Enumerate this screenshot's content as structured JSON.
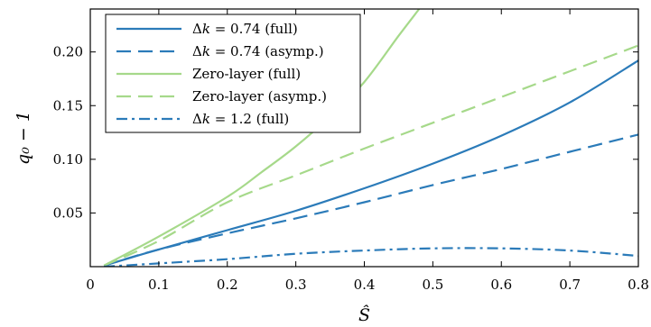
{
  "chart_data": {
    "type": "line",
    "xlabel": "Ŝ",
    "ylabel": "q₀ − 1",
    "xlim": [
      0,
      0.8
    ],
    "ylim": [
      0,
      0.24
    ],
    "xticks": [
      0,
      0.1,
      0.2,
      0.3,
      0.4,
      0.5,
      0.6,
      0.7,
      0.8
    ],
    "xtick_labels": [
      "0",
      "0.1",
      "0.2",
      "0.3",
      "0.4",
      "0.5",
      "0.6",
      "0.7",
      "0.8"
    ],
    "yticks": [
      0.05,
      0.1,
      0.15,
      0.2
    ],
    "ytick_labels": [
      "0.05",
      "0.10",
      "0.15",
      "0.20"
    ],
    "grid": false,
    "legend_position": "top-left",
    "series": [
      {
        "name_prefix": "Δ",
        "name_var": "k",
        "name_suffix": " = 0.74 (full)",
        "color": "#2b7bb9",
        "dash": "solid",
        "x": [
          0.02,
          0.1,
          0.2,
          0.3,
          0.4,
          0.5,
          0.6,
          0.7,
          0.8
        ],
        "y": [
          0.001,
          0.016,
          0.034,
          0.052,
          0.073,
          0.096,
          0.122,
          0.153,
          0.192
        ]
      },
      {
        "name_prefix": "Δ",
        "name_var": "k",
        "name_suffix": " = 0.74 (asymp.)",
        "color": "#2b7bb9",
        "dash": "dashed",
        "x": [
          0.02,
          0.1,
          0.2,
          0.3,
          0.4,
          0.5,
          0.6,
          0.7,
          0.8
        ],
        "y": [
          0.001,
          0.016,
          0.031,
          0.045,
          0.06,
          0.076,
          0.091,
          0.107,
          0.123
        ]
      },
      {
        "name": "Zero-layer (full)",
        "color": "#a6d98a",
        "dash": "solid",
        "x": [
          0.02,
          0.1,
          0.2,
          0.25,
          0.3,
          0.35,
          0.4,
          0.45,
          0.48
        ],
        "y": [
          0.001,
          0.028,
          0.065,
          0.088,
          0.112,
          0.14,
          0.172,
          0.215,
          0.24
        ]
      },
      {
        "name": "Zero-layer (asymp.)",
        "color": "#a6d98a",
        "dash": "dashed",
        "x": [
          0.02,
          0.1,
          0.2,
          0.3,
          0.4,
          0.5,
          0.6,
          0.7,
          0.8
        ],
        "y": [
          0.001,
          0.024,
          0.06,
          0.085,
          0.11,
          0.134,
          0.158,
          0.182,
          0.206
        ]
      },
      {
        "name_prefix": "Δ",
        "name_var": "k",
        "name_suffix": " = 1.2 (full)",
        "color": "#2b7bb9",
        "dash": "dashdot",
        "x": [
          0.02,
          0.1,
          0.2,
          0.3,
          0.4,
          0.5,
          0.6,
          0.7,
          0.8
        ],
        "y": [
          0.0,
          0.003,
          0.007,
          0.012,
          0.015,
          0.017,
          0.017,
          0.015,
          0.01
        ]
      }
    ]
  }
}
